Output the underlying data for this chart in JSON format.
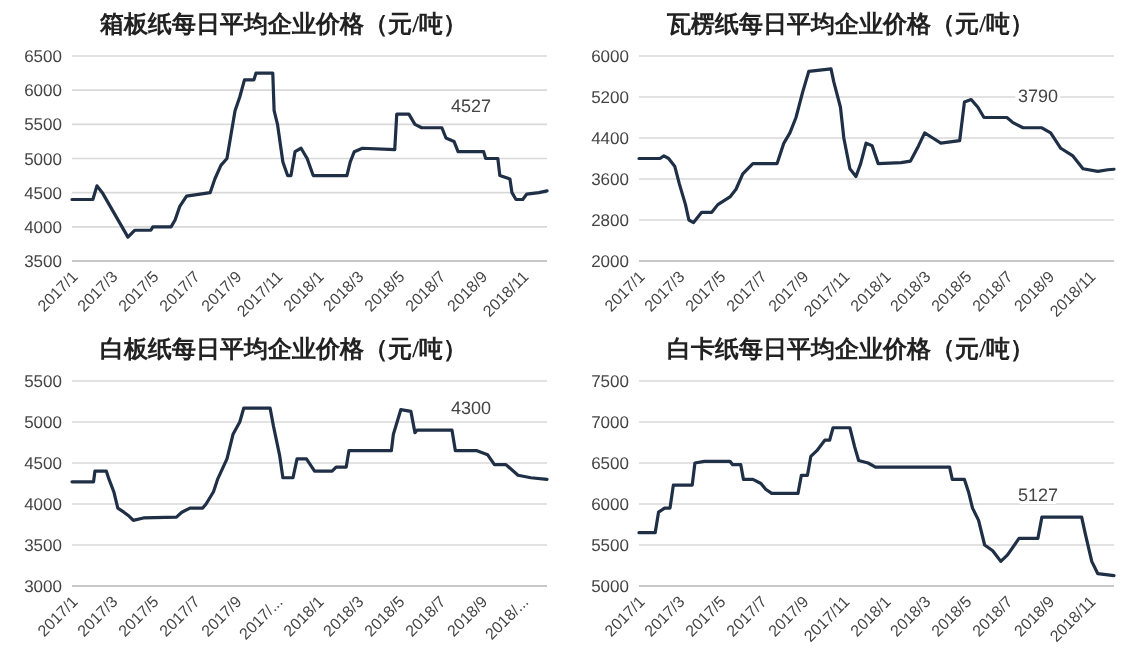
{
  "chart_data": [
    {
      "type": "line",
      "title": "箱板纸每日平均企业价格（元/吨）",
      "grid": "y",
      "xlim": [
        "2017-01-01",
        "2018-12-07"
      ],
      "ylim": [
        3500,
        6500
      ],
      "yticks": [
        3500,
        4000,
        4500,
        5000,
        5500,
        6000,
        6500
      ],
      "xticks": [
        {
          "value": "2017-01-01",
          "label": "2017/1"
        },
        {
          "value": "2017-03-01",
          "label": "2017/3"
        },
        {
          "value": "2017-05-01",
          "label": "2017/5"
        },
        {
          "value": "2017-07-01",
          "label": "2017/7"
        },
        {
          "value": "2017-09-01",
          "label": "2017/9"
        },
        {
          "value": "2017-11-01",
          "label": "2017/11"
        },
        {
          "value": "2018-01-01",
          "label": "2018/1"
        },
        {
          "value": "2018-03-01",
          "label": "2018/3"
        },
        {
          "value": "2018-05-01",
          "label": "2018/5"
        },
        {
          "value": "2018-07-01",
          "label": "2018/7"
        },
        {
          "value": "2018-09-01",
          "label": "2018/9"
        },
        {
          "value": "2018-11-01",
          "label": "2018/11"
        }
      ],
      "annotations": [
        "4527"
      ],
      "x": [
        "2017-01-01",
        "2017-02-01",
        "2017-02-07",
        "2017-02-15",
        "2017-03-25",
        "2017-04-04",
        "2017-04-28",
        "2017-05-01",
        "2017-05-28",
        "2017-06-03",
        "2017-06-10",
        "2017-06-20",
        "2017-07-25",
        "2017-08-01",
        "2017-08-10",
        "2017-08-19",
        "2017-08-31",
        "2017-09-07",
        "2017-09-14",
        "2017-09-28",
        "2017-10-01",
        "2017-10-26",
        "2017-10-28",
        "2017-11-02",
        "2017-11-10",
        "2017-11-17",
        "2017-11-22",
        "2017-11-28",
        "2017-12-07",
        "2017-12-16",
        "2017-12-25",
        "2018-02-13",
        "2018-02-18",
        "2018-02-24",
        "2018-03-08",
        "2018-04-25",
        "2018-04-28",
        "2018-05-16",
        "2018-05-25",
        "2018-06-04",
        "2018-07-04",
        "2018-07-10",
        "2018-07-22",
        "2018-07-28",
        "2018-09-04",
        "2018-09-07",
        "2018-09-25",
        "2018-09-28",
        "2018-10-13",
        "2018-10-16",
        "2018-10-22",
        "2018-11-01",
        "2018-11-07",
        "2018-11-25",
        "2018-12-07"
      ],
      "series": [
        {
          "color": "#1f2f45",
          "values": [
            4400,
            4400,
            4600,
            4500,
            3850,
            3950,
            3950,
            4000,
            4000,
            4100,
            4300,
            4450,
            4500,
            4700,
            4900,
            5000,
            5700,
            5900,
            6150,
            6150,
            6250,
            6250,
            5700,
            5500,
            4950,
            4750,
            4750,
            5100,
            5150,
            5000,
            4750,
            4750,
            4950,
            5100,
            5150,
            5130,
            5650,
            5650,
            5500,
            5450,
            5450,
            5300,
            5250,
            5100,
            5100,
            5000,
            5000,
            4750,
            4700,
            4500,
            4400,
            4400,
            4480,
            4500,
            4527
          ]
        }
      ]
    },
    {
      "type": "line",
      "title": "瓦楞纸每日平均企业价格（元/吨）",
      "grid": "y",
      "xlim": [
        "2017-01-01",
        "2018-12-07"
      ],
      "ylim": [
        2000,
        6000
      ],
      "yticks": [
        2000,
        2800,
        3600,
        4400,
        5200,
        6000
      ],
      "xticks": [
        {
          "value": "2017-01-01",
          "label": "2017/1"
        },
        {
          "value": "2017-03-01",
          "label": "2017/3"
        },
        {
          "value": "2017-05-01",
          "label": "2017/5"
        },
        {
          "value": "2017-07-01",
          "label": "2017/7"
        },
        {
          "value": "2017-09-01",
          "label": "2017/9"
        },
        {
          "value": "2017-11-01",
          "label": "2017/11"
        },
        {
          "value": "2018-01-01",
          "label": "2018/1"
        },
        {
          "value": "2018-03-01",
          "label": "2018/3"
        },
        {
          "value": "2018-05-01",
          "label": "2018/5"
        },
        {
          "value": "2018-07-01",
          "label": "2018/7"
        },
        {
          "value": "2018-09-01",
          "label": "2018/9"
        },
        {
          "value": "2018-11-01",
          "label": "2018/11"
        }
      ],
      "annotations": [
        "3790"
      ],
      "x": [
        "2017-01-01",
        "2017-02-01",
        "2017-02-07",
        "2017-02-14",
        "2017-02-23",
        "2017-03-02",
        "2017-03-11",
        "2017-03-16",
        "2017-03-23",
        "2017-04-04",
        "2017-04-19",
        "2017-04-28",
        "2017-05-16",
        "2017-05-25",
        "2017-06-04",
        "2017-06-19",
        "2017-07-25",
        "2017-08-04",
        "2017-08-13",
        "2017-08-22",
        "2017-09-01",
        "2017-09-10",
        "2017-10-13",
        "2017-10-17",
        "2017-10-27",
        "2017-11-01",
        "2017-11-10",
        "2017-11-19",
        "2017-11-26",
        "2017-12-04",
        "2017-12-13",
        "2017-12-22",
        "2018-01-25",
        "2018-02-08",
        "2018-02-20",
        "2018-03-01",
        "2018-03-13",
        "2018-03-25",
        "2018-04-22",
        "2018-04-29",
        "2018-05-09",
        "2018-05-19",
        "2018-05-28",
        "2018-07-01",
        "2018-07-10",
        "2018-07-25",
        "2018-08-22",
        "2018-09-04",
        "2018-09-19",
        "2018-10-07",
        "2018-10-22",
        "2018-11-13",
        "2018-11-28",
        "2018-12-07"
      ],
      "series": [
        {
          "color": "#1f2f45",
          "values": [
            4000,
            4000,
            4050,
            4000,
            3850,
            3500,
            3100,
            2800,
            2750,
            2950,
            2950,
            3100,
            3250,
            3400,
            3700,
            3900,
            3900,
            4300,
            4500,
            4800,
            5300,
            5700,
            5750,
            5500,
            5000,
            4400,
            3800,
            3650,
            3900,
            4300,
            4250,
            3900,
            3920,
            3950,
            4250,
            4500,
            4400,
            4300,
            4350,
            5100,
            5150,
            5000,
            4800,
            4800,
            4700,
            4600,
            4600,
            4500,
            4200,
            4050,
            3800,
            3750,
            3780,
            3790
          ]
        }
      ]
    },
    {
      "type": "line",
      "title": "白板纸每日平均企业价格（元/吨）",
      "grid": "y",
      "xlim": [
        "2017-01-01",
        "2018-12-07"
      ],
      "ylim": [
        3000,
        5500
      ],
      "yticks": [
        3000,
        3500,
        4000,
        4500,
        5000,
        5500
      ],
      "xticks": [
        {
          "value": "2017-01-01",
          "label": "2017/1"
        },
        {
          "value": "2017-03-01",
          "label": "2017/3"
        },
        {
          "value": "2017-05-01",
          "label": "2017/5"
        },
        {
          "value": "2017-07-01",
          "label": "2017/7"
        },
        {
          "value": "2017-09-01",
          "label": "2017/9"
        },
        {
          "value": "2017-11-01",
          "label": "2017/..."
        },
        {
          "value": "2018-01-01",
          "label": "2018/1"
        },
        {
          "value": "2018-03-01",
          "label": "2018/3"
        },
        {
          "value": "2018-05-01",
          "label": "2018/5"
        },
        {
          "value": "2018-07-01",
          "label": "2018/7"
        },
        {
          "value": "2018-09-01",
          "label": "2018/9"
        },
        {
          "value": "2018-11-01",
          "label": "2018/..."
        }
      ],
      "annotations": [
        "4300"
      ],
      "x": [
        "2017-01-01",
        "2017-02-02",
        "2017-02-04",
        "2017-02-21",
        "2017-02-25",
        "2017-03-04",
        "2017-03-10",
        "2017-03-19",
        "2017-03-27",
        "2017-04-02",
        "2017-04-17",
        "2017-06-05",
        "2017-06-13",
        "2017-06-25",
        "2017-07-14",
        "2017-07-19",
        "2017-07-30",
        "2017-08-05",
        "2017-08-19",
        "2017-08-28",
        "2017-09-07",
        "2017-09-13",
        "2017-10-22",
        "2017-10-27",
        "2017-11-05",
        "2017-11-10",
        "2017-11-25",
        "2017-12-01",
        "2017-12-15",
        "2017-12-27",
        "2018-01-22",
        "2018-01-28",
        "2018-02-12",
        "2018-02-16",
        "2018-04-20",
        "2018-04-23",
        "2018-05-04",
        "2018-05-19",
        "2018-05-25",
        "2018-05-28",
        "2018-07-19",
        "2018-07-24",
        "2018-08-25",
        "2018-09-10",
        "2018-09-20",
        "2018-10-07",
        "2018-10-25",
        "2018-11-13",
        "2018-12-07"
      ],
      "series": [
        {
          "color": "#1f2f45",
          "values": [
            4270,
            4270,
            4400,
            4400,
            4300,
            4150,
            3950,
            3900,
            3850,
            3800,
            3830,
            3840,
            3900,
            3950,
            3950,
            4000,
            4150,
            4300,
            4550,
            4850,
            5000,
            5170,
            5170,
            4950,
            4600,
            4320,
            4320,
            4550,
            4550,
            4400,
            4400,
            4450,
            4450,
            4650,
            4650,
            4850,
            5150,
            5130,
            4870,
            4900,
            4900,
            4650,
            4650,
            4600,
            4480,
            4480,
            4350,
            4320,
            4300
          ]
        }
      ]
    },
    {
      "type": "line",
      "title": "白卡纸每日平均企业价格（元/吨）",
      "grid": "y",
      "xlim": [
        "2017-01-01",
        "2018-12-07"
      ],
      "ylim": [
        5000,
        7500
      ],
      "yticks": [
        5000,
        5500,
        6000,
        6500,
        7000,
        7500
      ],
      "xticks": [
        {
          "value": "2017-01-01",
          "label": "2017/1"
        },
        {
          "value": "2017-03-01",
          "label": "2017/3"
        },
        {
          "value": "2017-05-01",
          "label": "2017/5"
        },
        {
          "value": "2017-07-01",
          "label": "2017/7"
        },
        {
          "value": "2017-09-01",
          "label": "2017/9"
        },
        {
          "value": "2017-11-01",
          "label": "2017/11"
        },
        {
          "value": "2018-01-01",
          "label": "2018/1"
        },
        {
          "value": "2018-03-01",
          "label": "2018/3"
        },
        {
          "value": "2018-05-01",
          "label": "2018/5"
        },
        {
          "value": "2018-07-01",
          "label": "2018/7"
        },
        {
          "value": "2018-09-01",
          "label": "2018/9"
        },
        {
          "value": "2018-11-01",
          "label": "2018/11"
        }
      ],
      "annotations": [
        "5127"
      ],
      "x": [
        "2017-01-01",
        "2017-01-25",
        "2017-01-30",
        "2017-02-08",
        "2017-02-16",
        "2017-02-21",
        "2017-03-21",
        "2017-03-25",
        "2017-04-08",
        "2017-05-16",
        "2017-05-20",
        "2017-06-01",
        "2017-06-05",
        "2017-06-19",
        "2017-07-01",
        "2017-07-08",
        "2017-07-17",
        "2017-08-25",
        "2017-08-30",
        "2017-09-08",
        "2017-09-13",
        "2017-09-22",
        "2017-10-04",
        "2017-10-11",
        "2017-10-16",
        "2017-11-10",
        "2017-11-17",
        "2017-11-23",
        "2017-12-07",
        "2017-12-18",
        "2018-04-07",
        "2018-04-11",
        "2018-04-29",
        "2018-05-05",
        "2018-05-11",
        "2018-05-20",
        "2018-05-29",
        "2018-06-10",
        "2018-06-22",
        "2018-07-02",
        "2018-07-19",
        "2018-08-16",
        "2018-08-22",
        "2018-10-20",
        "2018-10-25",
        "2018-11-04",
        "2018-11-13",
        "2018-12-07"
      ],
      "series": [
        {
          "color": "#1f2f45",
          "values": [
            5650,
            5650,
            5900,
            5950,
            5950,
            6230,
            6230,
            6500,
            6520,
            6520,
            6480,
            6480,
            6300,
            6300,
            6250,
            6180,
            6130,
            6130,
            6350,
            6350,
            6580,
            6650,
            6780,
            6780,
            6930,
            6930,
            6700,
            6530,
            6500,
            6450,
            6450,
            6300,
            6300,
            6150,
            5950,
            5800,
            5500,
            5430,
            5300,
            5380,
            5580,
            5580,
            5840,
            5840,
            5650,
            5300,
            5150,
            5127
          ]
        }
      ]
    }
  ]
}
